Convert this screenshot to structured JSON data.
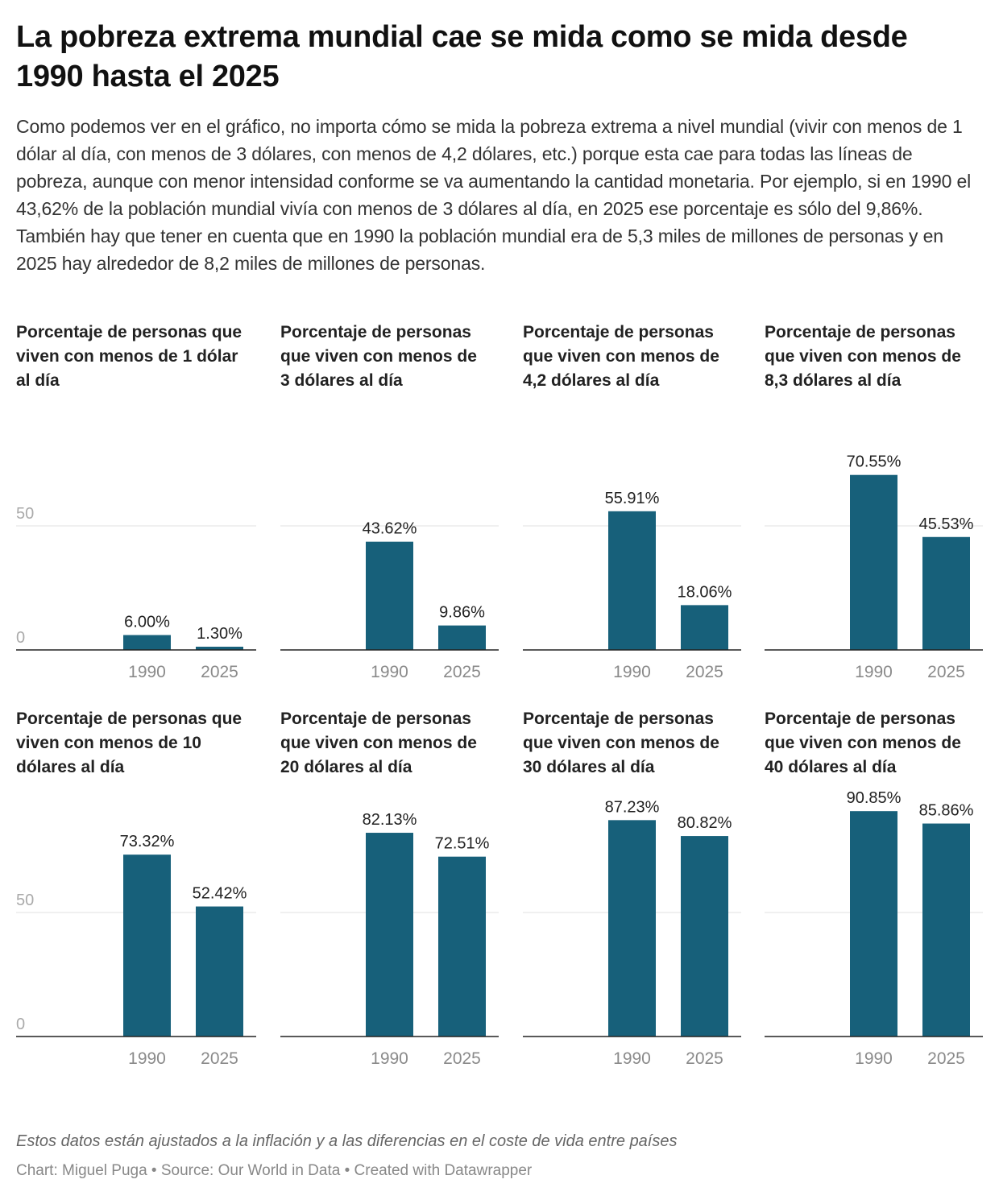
{
  "header": {
    "title": "La pobreza extrema mundial cae se mida como se mida desde 1990 hasta el 2025",
    "description": "Como podemos ver en el gráfico, no importa cómo se mida la pobreza extrema a nivel mundial (vivir con menos de 1 dólar al día, con menos de 3 dólares, con menos de 4,2 dólares, etc.) porque esta cae para todas las líneas de pobreza, aunque con menor intensidad conforme se va aumentando la cantidad monetaria. Por ejemplo, si en 1990 el 43,62% de la población mundial vivía con menos de 3 dólares al día, en 2025 ese porcentaje es sólo del 9,86%. También hay que tener en cuenta que en 1990 la población mundial era de 5,3 miles de millones de personas y en 2025 hay alrededor de 8,2 miles de millones de personas."
  },
  "footer": {
    "note": "Estos datos están ajustados a la inflación y a las diferencias en el coste de vida entre países",
    "credit": "Chart: Miguel Puga • Source: Our World in Data • Created with Datawrapper"
  },
  "colors": {
    "bar": "#17607a",
    "grid": "#e0e0e0",
    "axis": "#222222",
    "tick_label": "#8a8a8a"
  },
  "chart_data": [
    {
      "type": "bar",
      "title": "Porcentaje de personas que viven con menos de 1 dólar al día",
      "categories": [
        "1990",
        "2025"
      ],
      "values": [
        6.0,
        1.3
      ],
      "labels": [
        "6.00%",
        "1.30%"
      ],
      "ylim": [
        0,
        100
      ],
      "yticks": [
        "0",
        "50"
      ],
      "grid": true
    },
    {
      "type": "bar",
      "title": "Porcentaje de personas que viven con menos de 3 dólares al día",
      "categories": [
        "1990",
        "2025"
      ],
      "values": [
        43.62,
        9.86
      ],
      "labels": [
        "43.62%",
        "9.86%"
      ],
      "ylim": [
        0,
        100
      ],
      "grid": true
    },
    {
      "type": "bar",
      "title": "Porcentaje de personas que viven con menos de 4,2 dólares al día",
      "categories": [
        "1990",
        "2025"
      ],
      "values": [
        55.91,
        18.06
      ],
      "labels": [
        "55.91%",
        "18.06%"
      ],
      "ylim": [
        0,
        100
      ],
      "grid": true
    },
    {
      "type": "bar",
      "title": "Porcentaje de personas que viven con menos de 8,3 dólares al día",
      "categories": [
        "1990",
        "2025"
      ],
      "values": [
        70.55,
        45.53
      ],
      "labels": [
        "70.55%",
        "45.53%"
      ],
      "ylim": [
        0,
        100
      ],
      "grid": true
    },
    {
      "type": "bar",
      "title": "Porcentaje de personas que viven con menos de 10 dólares al día",
      "categories": [
        "1990",
        "2025"
      ],
      "values": [
        73.32,
        52.42
      ],
      "labels": [
        "73.32%",
        "52.42%"
      ],
      "ylim": [
        0,
        100
      ],
      "yticks": [
        "0",
        "50"
      ],
      "grid": true
    },
    {
      "type": "bar",
      "title": "Porcentaje de personas que viven con menos de 20 dólares al día",
      "categories": [
        "1990",
        "2025"
      ],
      "values": [
        82.13,
        72.51
      ],
      "labels": [
        "82.13%",
        "72.51%"
      ],
      "ylim": [
        0,
        100
      ],
      "grid": true
    },
    {
      "type": "bar",
      "title": "Porcentaje de personas que viven con menos de 30 dólares al día",
      "categories": [
        "1990",
        "2025"
      ],
      "values": [
        87.23,
        80.82
      ],
      "labels": [
        "87.23%",
        "80.82%"
      ],
      "ylim": [
        0,
        100
      ],
      "grid": true
    },
    {
      "type": "bar",
      "title": "Porcentaje de personas que viven con menos de 40 dólares al día",
      "categories": [
        "1990",
        "2025"
      ],
      "values": [
        90.85,
        85.86
      ],
      "labels": [
        "90.85%",
        "85.86%"
      ],
      "ylim": [
        0,
        100
      ],
      "grid": true
    }
  ]
}
